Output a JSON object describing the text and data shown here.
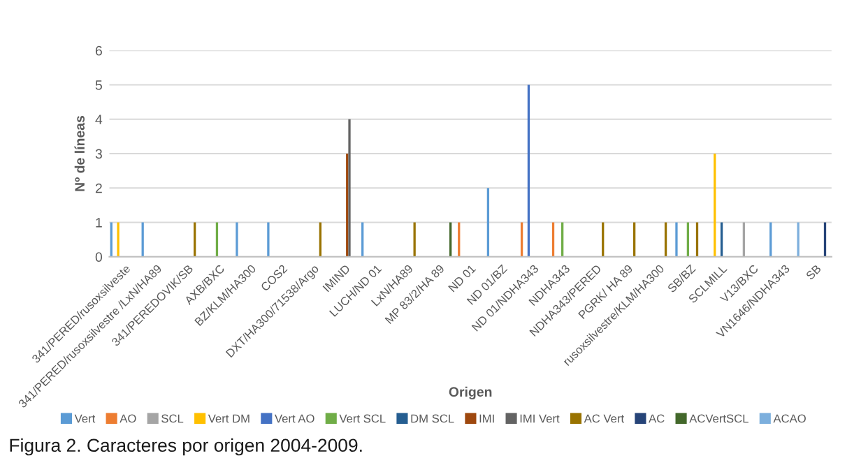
{
  "chart_data": {
    "type": "bar",
    "ylabel": "Nº de líneas",
    "xlabel": "Origen",
    "categories": [
      "341/PERED/rusoxsilveste",
      "341/PERED/rusoxsilvestre /LxN/HA89",
      "341/PEREDOVIK/SB",
      "AXB/BXC",
      "BZ/KLM/HA300",
      "COS2",
      "DXT/HA300/71538/Argo",
      "IMIND",
      "LUCH/ND 01",
      "LxN/HA89",
      "MP 83/2/HA 89",
      "ND 01",
      "ND 01/BZ",
      "ND 01/NDHA343",
      "NDHA343",
      "NDHA343/PERED",
      "PGRK/ HA 89",
      "rusoxsilvestre/KLM/HA300",
      "SB/BZ",
      "SCLMILL",
      "V13/BXC",
      "VN1646/NDHA343",
      "SB"
    ],
    "series": [
      {
        "name": "Vert",
        "color": "#5b9bd5",
        "values": [
          1,
          1,
          null,
          null,
          1,
          1,
          null,
          null,
          1,
          null,
          null,
          null,
          2,
          null,
          null,
          null,
          null,
          null,
          1,
          null,
          null,
          1,
          null
        ]
      },
      {
        "name": "AO",
        "color": "#ed7d31",
        "values": [
          null,
          null,
          null,
          null,
          null,
          null,
          null,
          null,
          null,
          null,
          null,
          1,
          null,
          1,
          1,
          null,
          null,
          null,
          null,
          null,
          null,
          null,
          null
        ]
      },
      {
        "name": "SCL",
        "color": "#a5a5a5",
        "values": [
          null,
          null,
          null,
          null,
          null,
          null,
          null,
          null,
          null,
          null,
          null,
          null,
          null,
          null,
          null,
          null,
          null,
          null,
          null,
          null,
          1,
          null,
          null
        ]
      },
      {
        "name": "Vert DM",
        "color": "#ffc000",
        "values": [
          1,
          null,
          null,
          null,
          null,
          null,
          null,
          null,
          null,
          null,
          null,
          null,
          null,
          null,
          null,
          null,
          null,
          null,
          null,
          3,
          null,
          null,
          null
        ]
      },
      {
        "name": "Vert AO",
        "color": "#4472c4",
        "values": [
          null,
          null,
          null,
          null,
          null,
          null,
          null,
          null,
          null,
          null,
          null,
          null,
          null,
          5,
          null,
          null,
          null,
          null,
          null,
          null,
          null,
          null,
          null
        ]
      },
      {
        "name": "Vert SCL",
        "color": "#70ad47",
        "values": [
          null,
          null,
          null,
          1,
          null,
          null,
          null,
          null,
          null,
          null,
          null,
          null,
          null,
          null,
          1,
          null,
          null,
          null,
          1,
          null,
          null,
          null,
          null
        ]
      },
      {
        "name": "DM SCL",
        "color": "#255e91",
        "values": [
          null,
          null,
          null,
          null,
          null,
          null,
          null,
          null,
          null,
          null,
          null,
          null,
          null,
          null,
          null,
          null,
          null,
          null,
          null,
          1,
          null,
          null,
          null
        ]
      },
      {
        "name": "IMI",
        "color": "#9e480e",
        "values": [
          null,
          null,
          null,
          null,
          null,
          null,
          null,
          3,
          null,
          null,
          null,
          null,
          null,
          null,
          null,
          null,
          null,
          null,
          null,
          null,
          null,
          null,
          null
        ]
      },
      {
        "name": "IMI Vert",
        "color": "#636363",
        "values": [
          null,
          null,
          null,
          null,
          null,
          null,
          null,
          4,
          null,
          null,
          null,
          null,
          null,
          null,
          null,
          null,
          null,
          null,
          null,
          null,
          null,
          null,
          null
        ]
      },
      {
        "name": "AC Vert",
        "color": "#997300",
        "values": [
          null,
          null,
          1,
          null,
          null,
          null,
          1,
          null,
          null,
          1,
          null,
          null,
          null,
          null,
          null,
          1,
          1,
          1,
          1,
          null,
          null,
          null,
          null
        ]
      },
      {
        "name": "AC",
        "color": "#264478",
        "values": [
          null,
          null,
          null,
          null,
          null,
          null,
          null,
          null,
          null,
          null,
          null,
          null,
          null,
          null,
          null,
          null,
          null,
          null,
          null,
          null,
          null,
          null,
          1
        ]
      },
      {
        "name": "ACVertSCL",
        "color": "#43682b",
        "values": [
          null,
          null,
          null,
          null,
          null,
          null,
          null,
          null,
          null,
          null,
          1,
          null,
          null,
          null,
          null,
          null,
          null,
          null,
          null,
          null,
          null,
          null,
          null
        ]
      },
      {
        "name": "ACAO",
        "color": "#7cafdd",
        "values": [
          null,
          null,
          null,
          null,
          null,
          null,
          null,
          null,
          null,
          null,
          null,
          null,
          null,
          null,
          null,
          null,
          null,
          null,
          null,
          null,
          null,
          1,
          null
        ]
      }
    ],
    "ylim": [
      0,
      6
    ],
    "yticks": [
      0,
      1,
      2,
      3,
      4,
      5,
      6
    ],
    "grid": "y",
    "legend": "bottom",
    "annotations": [
      "Figura 2. Caracteres por origen 2004-2009."
    ]
  }
}
